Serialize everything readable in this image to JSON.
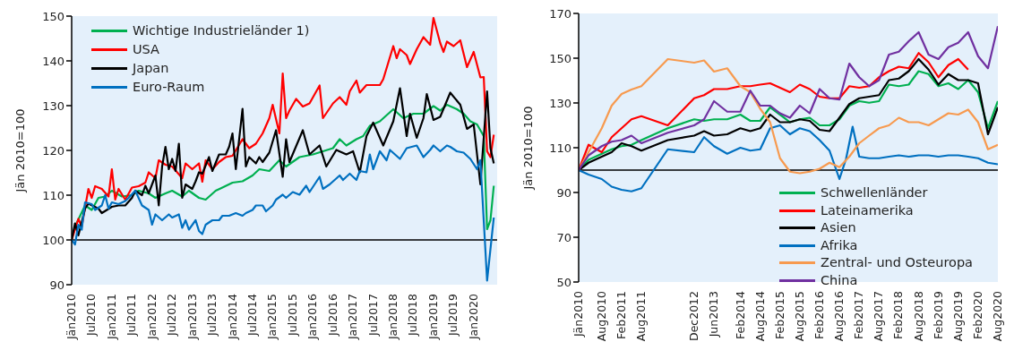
{
  "chart_data": [
    {
      "type": "line",
      "ylabel": "Jän 2010=100",
      "ylim": [
        90,
        150
      ],
      "yticks": [
        90,
        100,
        110,
        120,
        130,
        140,
        150
      ],
      "xlim": [
        "2010-01",
        "2020-08"
      ],
      "xticks": [
        {
          "value": "2010-01",
          "label": "Jän2010"
        },
        {
          "value": "2010-07",
          "label": "Jul2010"
        },
        {
          "value": "2011-01",
          "label": "Jan2011"
        },
        {
          "value": "2011-07",
          "label": "Jul2011"
        },
        {
          "value": "2012-01",
          "label": "Jan2012"
        },
        {
          "value": "2012-07",
          "label": "Jul2012"
        },
        {
          "value": "2013-01",
          "label": "Jan2013"
        },
        {
          "value": "2013-07",
          "label": "Jul2013"
        },
        {
          "value": "2014-01",
          "label": "Jan2014"
        },
        {
          "value": "2014-07",
          "label": "Jul2014"
        },
        {
          "value": "2015-01",
          "label": "Jan2015"
        },
        {
          "value": "2015-07",
          "label": "Jul2015"
        },
        {
          "value": "2016-01",
          "label": "Jan2016"
        },
        {
          "value": "2016-07",
          "label": "Jul2016"
        },
        {
          "value": "2017-01",
          "label": "Jan2017"
        },
        {
          "value": "2017-07",
          "label": "Jul2017"
        },
        {
          "value": "2018-01",
          "label": "Jan2018"
        },
        {
          "value": "2018-07",
          "label": "Jul2018"
        },
        {
          "value": "2019-01",
          "label": "Jan2019"
        },
        {
          "value": "2019-07",
          "label": "Jul2019"
        },
        {
          "value": "2020-01",
          "label": "Jan2020"
        }
      ],
      "legend": "top left",
      "marker": "none",
      "ref_lines": [
        {
          "axis": "y",
          "value": 100,
          "color": "#000000"
        }
      ],
      "series": [
        {
          "name": "Wichtige Industrieländer 1)",
          "color": "#00b050",
          "x": [
            "2010-01",
            "2010-02",
            "2010-05",
            "2010-07",
            "2010-09",
            "2010-11",
            "2011-01",
            "2011-04",
            "2011-07",
            "2011-09",
            "2011-12",
            "2012-02",
            "2012-05",
            "2012-07",
            "2012-10",
            "2012-12",
            "2013-03",
            "2013-05",
            "2013-08",
            "2013-10",
            "2014-01",
            "2014-04",
            "2014-07",
            "2014-09",
            "2014-12",
            "2015-03",
            "2015-05",
            "2015-09",
            "2016-01",
            "2016-04",
            "2016-07",
            "2016-09",
            "2016-11",
            "2017-02",
            "2017-04",
            "2017-06",
            "2017-09",
            "2018-01",
            "2018-04",
            "2018-07",
            "2018-10",
            "2019-01",
            "2019-03",
            "2019-05",
            "2019-08",
            "2019-10",
            "2019-12",
            "2020-02",
            "2020-04",
            "2020-05",
            "2020-06",
            "2020-07"
          ],
          "values": [
            100,
            103,
            107.7,
            106.7,
            109.4,
            109.7,
            111,
            109.7,
            110,
            111,
            110.4,
            109.4,
            110.4,
            111,
            109.7,
            111,
            109.4,
            109,
            111,
            111.7,
            112.8,
            113.1,
            114.4,
            115.8,
            115.4,
            117.8,
            116.4,
            118.5,
            119.1,
            119.8,
            120.5,
            122.5,
            121.1,
            122.5,
            123.2,
            125.5,
            126.5,
            129.2,
            127.2,
            128.2,
            128.2,
            129.9,
            128.9,
            130.2,
            129.2,
            128.2,
            126.5,
            125.8,
            123.2,
            102.4,
            104.4,
            112.1
          ]
        },
        {
          "name": "USA",
          "color": "#ff0000",
          "x": [
            "2010-01",
            "2010-03",
            "2010-04",
            "2010-06",
            "2010-07",
            "2010-08",
            "2010-10",
            "2010-12",
            "2011-01",
            "2011-02",
            "2011-03",
            "2011-05",
            "2011-07",
            "2011-09",
            "2011-11",
            "2011-12",
            "2012-02",
            "2012-03",
            "2012-05",
            "2012-07",
            "2012-10",
            "2012-11",
            "2013-01",
            "2013-03",
            "2013-04",
            "2013-05",
            "2013-07",
            "2013-09",
            "2013-11",
            "2014-01",
            "2014-04",
            "2014-06",
            "2014-08",
            "2014-10",
            "2014-12",
            "2015-01",
            "2015-03",
            "2015-04",
            "2015-05",
            "2015-06",
            "2015-08",
            "2015-10",
            "2015-12",
            "2016-03",
            "2016-04",
            "2016-07",
            "2016-09",
            "2016-11",
            "2016-12",
            "2017-02",
            "2017-03",
            "2017-05",
            "2017-09",
            "2017-10",
            "2018-01",
            "2018-02",
            "2018-03",
            "2018-05",
            "2018-06",
            "2018-08",
            "2018-10",
            "2018-12",
            "2019-01",
            "2019-03",
            "2019-04",
            "2019-05",
            "2019-07",
            "2019-09",
            "2019-11",
            "2020-01",
            "2020-03",
            "2020-04",
            "2020-05",
            "2020-06",
            "2020-07"
          ],
          "values": [
            100,
            104.7,
            103,
            111.4,
            109.4,
            112,
            111.4,
            109.7,
            115.8,
            109,
            111.4,
            109,
            111.7,
            112,
            112.8,
            115.1,
            113.8,
            117.8,
            116.8,
            116.4,
            113.8,
            117.1,
            115.8,
            117.1,
            113,
            117.8,
            115.8,
            117.4,
            118.5,
            118.8,
            122.5,
            120.5,
            121.5,
            123.8,
            127.2,
            130.2,
            123.8,
            137.2,
            127.2,
            128.9,
            131.5,
            129.8,
            130.5,
            134.5,
            127.2,
            130.5,
            131.9,
            130.2,
            133.2,
            135.6,
            132.9,
            134.6,
            134.6,
            135.9,
            143.3,
            140.6,
            142.6,
            141.3,
            139.3,
            142.6,
            145.3,
            143.6,
            149.6,
            144,
            142,
            144.3,
            143.3,
            144.6,
            138.6,
            142,
            136.3,
            136.4,
            119.8,
            118.5,
            123.5
          ]
        },
        {
          "name": "Japan",
          "color": "#000000",
          "x": [
            "2010-01",
            "2010-02",
            "2010-03",
            "2010-05",
            "2010-06",
            "2010-09",
            "2010-10",
            "2011-01",
            "2011-03",
            "2011-05",
            "2011-07",
            "2011-08",
            "2011-10",
            "2011-11",
            "2011-12",
            "2012-02",
            "2012-03",
            "2012-04",
            "2012-05",
            "2012-06",
            "2012-07",
            "2012-08",
            "2012-09",
            "2012-10",
            "2012-11",
            "2013-01",
            "2013-02",
            "2013-03",
            "2013-04",
            "2013-06",
            "2013-07",
            "2013-09",
            "2013-11",
            "2013-12",
            "2014-01",
            "2014-02",
            "2014-04",
            "2014-05",
            "2014-06",
            "2014-08",
            "2014-09",
            "2014-10",
            "2014-12",
            "2015-02",
            "2015-04",
            "2015-05",
            "2015-06",
            "2015-10",
            "2015-12",
            "2016-03",
            "2016-05",
            "2016-08",
            "2016-11",
            "2017-01",
            "2017-03",
            "2017-05",
            "2017-07",
            "2017-10",
            "2018-01",
            "2018-03",
            "2018-05",
            "2018-06",
            "2018-08",
            "2018-10",
            "2018-11",
            "2019-01",
            "2019-03",
            "2019-06",
            "2019-09",
            "2019-11",
            "2020-01",
            "2020-03",
            "2020-05",
            "2020-06",
            "2020-07"
          ],
          "values": [
            100,
            103.7,
            101,
            107,
            108.1,
            107,
            106,
            107.4,
            107.7,
            107.7,
            109.4,
            111,
            110,
            112.1,
            110.4,
            114.4,
            107.7,
            116.4,
            120.8,
            115.8,
            118.1,
            115.4,
            121.5,
            109.4,
            112.4,
            111.4,
            113.1,
            115.1,
            114.8,
            118.5,
            115.4,
            119.1,
            119.1,
            120.8,
            123.8,
            115.8,
            129.3,
            116.4,
            118.5,
            117.1,
            118.5,
            117.4,
            119.5,
            124.5,
            114.1,
            122.5,
            117.4,
            124.5,
            119.1,
            121.1,
            116.4,
            120.1,
            119.1,
            119.8,
            115.1,
            123.2,
            126.2,
            121.1,
            126.5,
            133.9,
            123.2,
            128.2,
            122.8,
            127.2,
            132.6,
            126.8,
            127.5,
            132.9,
            130.2,
            124.8,
            125.8,
            112.4,
            133.2,
            120.5,
            117.1
          ]
        },
        {
          "name": "Euro-Raum",
          "color": "#0070c0",
          "x": [
            "2010-01",
            "2010-02",
            "2010-03",
            "2010-04",
            "2010-05",
            "2010-07",
            "2010-08",
            "2010-10",
            "2010-11",
            "2010-12",
            "2011-01",
            "2011-03",
            "2011-05",
            "2011-06",
            "2011-08",
            "2011-10",
            "2011-12",
            "2012-01",
            "2012-02",
            "2012-04",
            "2012-06",
            "2012-07",
            "2012-09",
            "2012-10",
            "2012-11",
            "2012-12",
            "2013-02",
            "2013-03",
            "2013-04",
            "2013-05",
            "2013-07",
            "2013-09",
            "2013-10",
            "2013-12",
            "2014-02",
            "2014-04",
            "2014-05",
            "2014-07",
            "2014-08",
            "2014-10",
            "2014-11",
            "2015-01",
            "2015-02",
            "2015-04",
            "2015-05",
            "2015-07",
            "2015-09",
            "2015-11",
            "2015-12",
            "2016-03",
            "2016-04",
            "2016-06",
            "2016-09",
            "2016-10",
            "2016-12",
            "2017-02",
            "2017-03",
            "2017-05",
            "2017-06",
            "2017-07",
            "2017-09",
            "2017-11",
            "2017-12",
            "2018-03",
            "2018-05",
            "2018-08",
            "2018-10",
            "2018-12",
            "2019-01",
            "2019-03",
            "2019-05",
            "2019-06",
            "2019-08",
            "2019-10",
            "2019-12",
            "2020-02",
            "2020-03",
            "2020-05",
            "2020-07"
          ],
          "values": [
            100,
            99,
            103.4,
            102.3,
            108.4,
            108,
            106.7,
            107.7,
            110,
            107,
            108.4,
            108,
            108.7,
            109.4,
            111,
            107.7,
            106.7,
            103.4,
            105.7,
            104.4,
            105.7,
            105,
            105.7,
            102.7,
            104.4,
            102.3,
            104.4,
            102,
            101.3,
            103.4,
            104.4,
            104.4,
            105.4,
            105.4,
            106,
            105.4,
            106,
            106.7,
            107.7,
            107.7,
            106.4,
            107.7,
            109,
            110.1,
            109.4,
            110.7,
            110.1,
            112.1,
            110.7,
            114.1,
            111.4,
            112.4,
            114.4,
            113.4,
            114.8,
            113.4,
            115.4,
            115.1,
            119.1,
            115.8,
            119.8,
            117.8,
            120.1,
            118.1,
            120.5,
            121.1,
            118.5,
            120.1,
            121.1,
            119.8,
            121.1,
            120.8,
            119.8,
            119.5,
            118.1,
            115.8,
            117.8,
            90.9,
            105
          ]
        }
      ]
    },
    {
      "type": "line",
      "ylabel": "Jän 2010=100",
      "ylim": [
        50,
        170
      ],
      "yticks": [
        50,
        70,
        90,
        110,
        130,
        150,
        170
      ],
      "xlim": [
        "2010-01",
        "2020-08"
      ],
      "xticks": [
        {
          "value": "2010-01",
          "label": "Jän2010"
        },
        {
          "value": "2010-08",
          "label": "Aug2010"
        },
        {
          "value": "2011-02",
          "label": "Feb2011"
        },
        {
          "value": "2011-08",
          "label": "Aug2011"
        },
        {
          "value": "2012-12",
          "label": "Dec2012"
        },
        {
          "value": "2013-06",
          "label": "Jun2013"
        },
        {
          "value": "2014-02",
          "label": "Feb2014"
        },
        {
          "value": "2014-08",
          "label": "Aug2014"
        },
        {
          "value": "2015-02",
          "label": "Feb2015"
        },
        {
          "value": "2015-08",
          "label": "Aug2015"
        },
        {
          "value": "2016-02",
          "label": "Feb2016"
        },
        {
          "value": "2016-08",
          "label": "Aug2016"
        },
        {
          "value": "2017-02",
          "label": "Feb2017"
        },
        {
          "value": "2017-08",
          "label": "Aug2017"
        },
        {
          "value": "2018-02",
          "label": "Feb2018"
        },
        {
          "value": "2018-08",
          "label": "Aug2018"
        },
        {
          "value": "2019-02",
          "label": "Feb2019"
        },
        {
          "value": "2019-08",
          "label": "Aug2019"
        },
        {
          "value": "2020-02",
          "label": "Feb2020"
        },
        {
          "value": "2020-08",
          "label": "Aug2020"
        }
      ],
      "legend": "bottom right",
      "marker": "none",
      "ref_lines": [
        {
          "axis": "y",
          "value": 100,
          "color": "#000000"
        }
      ],
      "x": [
        "2010-01",
        "2010-04",
        "2010-08",
        "2010-11",
        "2011-02",
        "2011-05",
        "2011-08",
        "2012-04",
        "2012-12",
        "2013-03",
        "2013-06",
        "2013-10",
        "2014-02",
        "2014-05",
        "2014-08",
        "2014-11",
        "2015-02",
        "2015-05",
        "2015-08",
        "2015-11",
        "2016-02",
        "2016-05",
        "2016-08",
        "2016-11",
        "2017-02",
        "2017-05",
        "2017-08",
        "2017-11",
        "2018-02",
        "2018-05",
        "2018-08",
        "2018-11",
        "2019-02",
        "2019-05",
        "2019-08",
        "2019-11",
        "2020-02",
        "2020-05",
        "2020-08"
      ],
      "series": [
        {
          "name": "Schwellenländer",
          "color": "#00b050",
          "values": [
            100,
            104.6,
            107.3,
            109.3,
            110.7,
            111.3,
            113.4,
            118.7,
            122.7,
            122,
            122.7,
            122.7,
            124.8,
            122,
            122,
            128.1,
            124.8,
            121.4,
            122.7,
            123.4,
            120,
            120,
            122.7,
            128.8,
            130.8,
            130.1,
            130.8,
            138.2,
            137.5,
            138.2,
            144.2,
            142.9,
            137.5,
            138.8,
            136.2,
            140.2,
            134.8,
            118.7,
            130.8
          ]
        },
        {
          "name": "Lateinamerika",
          "color": "#ff0000",
          "values": [
            100,
            111.3,
            108,
            114.7,
            118.7,
            122.7,
            124.1,
            120,
            132.1,
            133.5,
            136.2,
            136.2,
            137.5,
            137.5,
            138.2,
            138.8,
            136.8,
            134.8,
            138.2,
            136.2,
            132.8,
            132.1,
            132.1,
            137.5,
            136.8,
            137.5,
            141.5,
            144.2,
            146.2,
            145.5,
            152.3,
            148.2,
            141.5,
            146.9,
            149.6,
            144.9,
            null,
            null,
            null
          ]
        },
        {
          "name": "Asien",
          "color": "#000000",
          "values": [
            100,
            103.3,
            106,
            108,
            112,
            110.7,
            108.7,
            113.4,
            115.4,
            117.4,
            115.4,
            116,
            118.7,
            117.4,
            118.7,
            124.8,
            121.4,
            121.4,
            122.7,
            122,
            118,
            117.4,
            123.4,
            129.5,
            132.1,
            132.8,
            133.5,
            140.2,
            140.9,
            144.2,
            149.6,
            144.9,
            138.2,
            142.9,
            140.2,
            140.2,
            138.8,
            116,
            128.1
          ]
        },
        {
          "name": "Afrika",
          "color": "#0070c0",
          "x": [
            "2010-01",
            "2010-04",
            "2010-08",
            "2010-11",
            "2011-02",
            "2011-05",
            "2011-08",
            "2012-04",
            "2012-12",
            "2013-03",
            "2013-06",
            "2013-10",
            "2014-02",
            "2014-05",
            "2014-08",
            "2014-11",
            "2015-02",
            "2015-05",
            "2015-08",
            "2015-11",
            "2016-02",
            "2016-05",
            "2016-08",
            "2016-10",
            "2016-12",
            "2017-02",
            "2017-05",
            "2017-08",
            "2017-11",
            "2018-02",
            "2018-05",
            "2018-08",
            "2018-11",
            "2019-02",
            "2019-05",
            "2019-08",
            "2019-11",
            "2020-02",
            "2020-05",
            "2020-08"
          ],
          "values": [
            100,
            98,
            96,
            92.6,
            91.2,
            90.5,
            91.9,
            109.3,
            108,
            114.7,
            110.7,
            107.3,
            110,
            108.7,
            109.3,
            118.7,
            120,
            116,
            118.7,
            117.4,
            113.4,
            108.7,
            96,
            105,
            119.4,
            106,
            105.3,
            105.3,
            106,
            106.6,
            106,
            106.6,
            106.6,
            106,
            106.6,
            106.6,
            106,
            105.3,
            103.3,
            102.6
          ]
        },
        {
          "name": "Zentral- und Osteuropa",
          "color": "#f79a4f",
          "values": [
            100,
            108,
            118.7,
            128.8,
            134,
            136,
            137.5,
            149.6,
            148,
            149,
            144,
            145.5,
            137.5,
            134.8,
            127.4,
            121.4,
            105.3,
            99.3,
            98.6,
            99.3,
            100.6,
            103.3,
            101.3,
            106,
            112,
            115.4,
            118.7,
            120,
            123.4,
            121.4,
            121.4,
            120,
            122.7,
            125.4,
            124.8,
            127,
            121.4,
            109.3,
            111.3
          ]
        },
        {
          "name": "China",
          "color": "#7030a0",
          "values": [
            100,
            106.6,
            110.7,
            112.7,
            113.4,
            115.4,
            112,
            116.7,
            120,
            122.7,
            130.8,
            126.1,
            126.1,
            135.5,
            128.8,
            128.8,
            125.4,
            123.4,
            128.8,
            125.4,
            136.2,
            132.1,
            131.5,
            147.6,
            141.5,
            137.5,
            140.2,
            151.6,
            152.9,
            157.6,
            161.6,
            151.6,
            149.6,
            154.9,
            156.9,
            161.6,
            150.9,
            145.5,
            164.3
          ]
        }
      ]
    }
  ]
}
